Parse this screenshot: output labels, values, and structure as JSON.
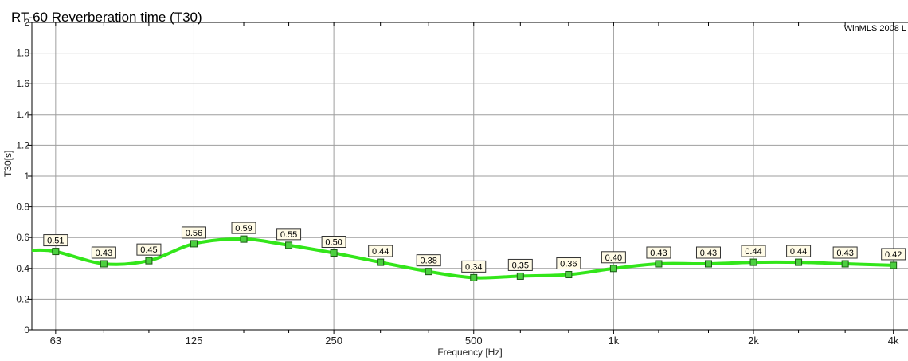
{
  "chart_data": {
    "type": "line",
    "title": "RT-60 Reverberation time (T30)",
    "watermark": "WinMLS 2008 L",
    "xlabel": "Frequency [Hz]",
    "ylabel": "T30[s]",
    "xscale": "log",
    "xlim": [
      56,
      4300
    ],
    "ylim": [
      0,
      2
    ],
    "grid": true,
    "yticks": [
      0,
      0.2,
      0.4,
      0.6,
      0.8,
      1,
      1.2,
      1.4,
      1.6,
      1.8,
      2
    ],
    "ytick_labels": [
      "0",
      "0.2",
      "0.4",
      "0.6",
      "0.8",
      "1",
      "1.2",
      "1.4",
      "1.6",
      "1.8",
      "2"
    ],
    "xticks_major": [
      63,
      125,
      250,
      500,
      1000,
      2000,
      4000
    ],
    "xtick_labels": [
      "63",
      "125",
      "250",
      "500",
      "1k",
      "2k",
      "4k"
    ],
    "xticks_minor": [
      80,
      100,
      160,
      200,
      315,
      400,
      630,
      800,
      1250,
      1600,
      2500,
      3150
    ],
    "series": [
      {
        "color": "#33e61a",
        "x": [
          63,
          80,
          100,
          125,
          160,
          200,
          250,
          315,
          400,
          500,
          630,
          800,
          1000,
          1250,
          1600,
          2000,
          2500,
          3150,
          4000
        ],
        "values": [
          0.51,
          0.43,
          0.45,
          0.56,
          0.59,
          0.55,
          0.5,
          0.44,
          0.38,
          0.34,
          0.35,
          0.36,
          0.4,
          0.43,
          0.43,
          0.44,
          0.44,
          0.43,
          0.42
        ],
        "labels": [
          "0.51",
          "0.43",
          "0.45",
          "0.56",
          "0.59",
          "0.55",
          "0.50",
          "0.44",
          "0.38",
          "0.34",
          "0.35",
          "0.36",
          "0.40",
          "0.43",
          "0.43",
          "0.44",
          "0.44",
          "0.43",
          "0.42"
        ]
      }
    ]
  }
}
